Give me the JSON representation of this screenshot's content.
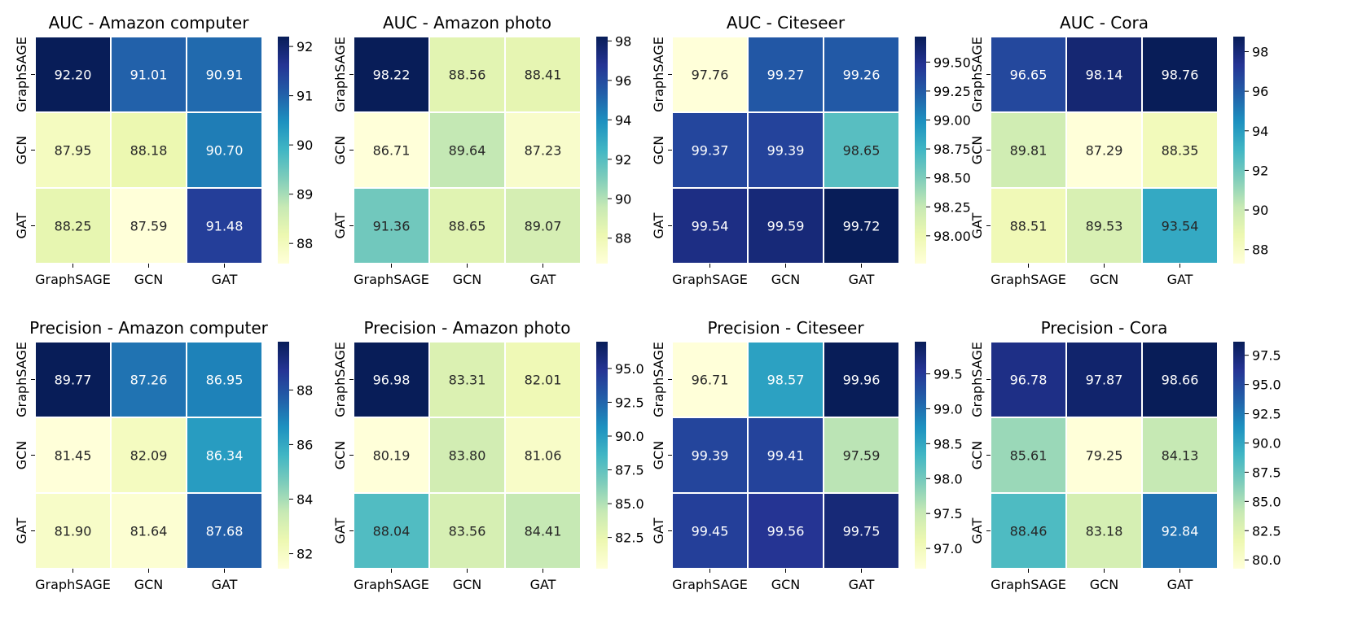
{
  "chart_data": [
    {
      "type": "heatmap",
      "title": "AUC - Amazon computer",
      "rows": [
        "GraphSAGE",
        "GCN",
        "GAT"
      ],
      "cols": [
        "GraphSAGE",
        "GCN",
        "GAT"
      ],
      "values": [
        [
          "92.20",
          "91.01",
          "90.91"
        ],
        [
          "87.95",
          "88.18",
          "90.70"
        ],
        [
          "88.25",
          "87.59",
          "91.48"
        ]
      ],
      "vmin": 87.59,
      "vmax": 92.2,
      "cbar_ticks": [
        "88",
        "89",
        "90",
        "91",
        "92"
      ]
    },
    {
      "type": "heatmap",
      "title": "AUC - Amazon photo",
      "rows": [
        "GraphSAGE",
        "GCN",
        "GAT"
      ],
      "cols": [
        "GraphSAGE",
        "GCN",
        "GAT"
      ],
      "values": [
        [
          "98.22",
          "88.56",
          "88.41"
        ],
        [
          "86.71",
          "89.64",
          "87.23"
        ],
        [
          "91.36",
          "88.65",
          "89.07"
        ]
      ],
      "vmin": 86.71,
      "vmax": 98.22,
      "cbar_ticks": [
        "88",
        "90",
        "92",
        "94",
        "96",
        "98"
      ]
    },
    {
      "type": "heatmap",
      "title": "AUC - Citeseer",
      "rows": [
        "GraphSAGE",
        "GCN",
        "GAT"
      ],
      "cols": [
        "GraphSAGE",
        "GCN",
        "GAT"
      ],
      "values": [
        [
          "97.76",
          "99.27",
          "99.26"
        ],
        [
          "99.37",
          "99.39",
          "98.65"
        ],
        [
          "99.54",
          "99.59",
          "99.72"
        ]
      ],
      "vmin": 97.76,
      "vmax": 99.72,
      "cbar_ticks": [
        "98.00",
        "98.25",
        "98.50",
        "98.75",
        "99.00",
        "99.25",
        "99.50"
      ]
    },
    {
      "type": "heatmap",
      "title": "AUC - Cora",
      "rows": [
        "GraphSAGE",
        "GCN",
        "GAT"
      ],
      "cols": [
        "GraphSAGE",
        "GCN",
        "GAT"
      ],
      "values": [
        [
          "96.65",
          "98.14",
          "98.76"
        ],
        [
          "89.81",
          "87.29",
          "88.35"
        ],
        [
          "88.51",
          "89.53",
          "93.54"
        ]
      ],
      "vmin": 87.29,
      "vmax": 98.76,
      "cbar_ticks": [
        "88",
        "90",
        "92",
        "94",
        "96",
        "98"
      ]
    },
    {
      "type": "heatmap",
      "title": "Precision - Amazon computer",
      "rows": [
        "GraphSAGE",
        "GCN",
        "GAT"
      ],
      "cols": [
        "GraphSAGE",
        "GCN",
        "GAT"
      ],
      "values": [
        [
          "89.77",
          "87.26",
          "86.95"
        ],
        [
          "81.45",
          "82.09",
          "86.34"
        ],
        [
          "81.90",
          "81.64",
          "87.68"
        ]
      ],
      "vmin": 81.45,
      "vmax": 89.77,
      "cbar_ticks": [
        "82",
        "84",
        "86",
        "88"
      ]
    },
    {
      "type": "heatmap",
      "title": "Precision - Amazon photo",
      "rows": [
        "GraphSAGE",
        "GCN",
        "GAT"
      ],
      "cols": [
        "GraphSAGE",
        "GCN",
        "GAT"
      ],
      "values": [
        [
          "96.98",
          "83.31",
          "82.01"
        ],
        [
          "80.19",
          "83.80",
          "81.06"
        ],
        [
          "88.04",
          "83.56",
          "84.41"
        ]
      ],
      "vmin": 80.19,
      "vmax": 96.98,
      "cbar_ticks": [
        "82.5",
        "85.0",
        "87.5",
        "90.0",
        "92.5",
        "95.0"
      ]
    },
    {
      "type": "heatmap",
      "title": "Precision - Citeseer",
      "rows": [
        "GraphSAGE",
        "GCN",
        "GAT"
      ],
      "cols": [
        "GraphSAGE",
        "GCN",
        "GAT"
      ],
      "values": [
        [
          "96.71",
          "98.57",
          "99.96"
        ],
        [
          "99.39",
          "99.41",
          "97.59"
        ],
        [
          "99.45",
          "99.56",
          "99.75"
        ]
      ],
      "vmin": 96.71,
      "vmax": 99.96,
      "cbar_ticks": [
        "97.0",
        "97.5",
        "98.0",
        "98.5",
        "99.0",
        "99.5"
      ]
    },
    {
      "type": "heatmap",
      "title": "Precision - Cora",
      "rows": [
        "GraphSAGE",
        "GCN",
        "GAT"
      ],
      "cols": [
        "GraphSAGE",
        "GCN",
        "GAT"
      ],
      "values": [
        [
          "96.78",
          "97.87",
          "98.66"
        ],
        [
          "85.61",
          "79.25",
          "84.13"
        ],
        [
          "88.46",
          "83.18",
          "92.84"
        ]
      ],
      "vmin": 79.25,
      "vmax": 98.66,
      "cbar_ticks": [
        "80.0",
        "82.5",
        "85.0",
        "87.5",
        "90.0",
        "92.5",
        "95.0",
        "97.5"
      ]
    }
  ],
  "colormap": [
    "#ffffd9",
    "#edf8b1",
    "#c7e9b4",
    "#7fcdbb",
    "#41b6c4",
    "#1d91c0",
    "#225ea8",
    "#253494",
    "#081d58"
  ],
  "text_colors": {
    "dark": "#262626",
    "light": "#ffffff"
  }
}
